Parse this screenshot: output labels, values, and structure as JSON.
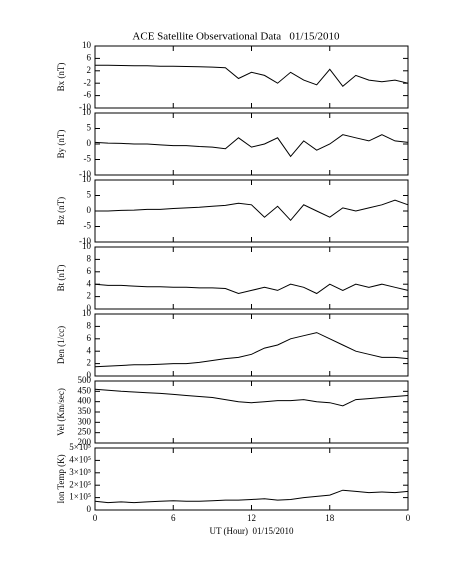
{
  "chart_data": [
    {
      "type": "line",
      "title": "ACE Satellite Observational Data   01/15/2010",
      "y_label": "Bx (nT)",
      "x": [
        0,
        1,
        2,
        3,
        4,
        5,
        6,
        7,
        8,
        9,
        10,
        11,
        12,
        13,
        14,
        15,
        16,
        17,
        18,
        19,
        20,
        21,
        22,
        23,
        24
      ],
      "values": [
        3.8,
        3.8,
        3.7,
        3.6,
        3.6,
        3.5,
        3.5,
        3.4,
        3.3,
        3.2,
        3.0,
        -0.5,
        1.5,
        0.5,
        -2,
        1.5,
        -1,
        -2.5,
        2.5,
        -3,
        0.5,
        -1,
        -1.5,
        -1,
        -2
      ],
      "color": "#000000",
      "xlim": [
        0,
        24
      ],
      "xticks": [
        0,
        6,
        12,
        18,
        {
          "value": 24,
          "label": "0"
        }
      ],
      "ylim": [
        -10,
        10
      ],
      "yticks": [
        -10,
        -6,
        -2,
        2,
        6,
        10
      ]
    },
    {
      "type": "line",
      "y_label": "By (nT)",
      "x": [
        0,
        1,
        2,
        3,
        4,
        5,
        6,
        7,
        8,
        9,
        10,
        11,
        12,
        13,
        14,
        15,
        16,
        17,
        18,
        19,
        20,
        21,
        22,
        23,
        24
      ],
      "values": [
        0.5,
        0.3,
        0.2,
        0,
        0,
        -0.3,
        -0.5,
        -0.5,
        -0.8,
        -1,
        -1.5,
        2,
        -1,
        0,
        2,
        -4,
        1,
        -2,
        0,
        3,
        2,
        1,
        3,
        1,
        0.5
      ],
      "color": "#000000",
      "xlim": [
        0,
        24
      ],
      "xticks": [
        0,
        6,
        12,
        18,
        {
          "value": 24,
          "label": "0"
        }
      ],
      "ylim": [
        -10,
        10
      ],
      "yticks": [
        -10,
        -5,
        0,
        5,
        10
      ]
    },
    {
      "type": "line",
      "y_label": "Bz (nT)",
      "x": [
        0,
        1,
        2,
        3,
        4,
        5,
        6,
        7,
        8,
        9,
        10,
        11,
        12,
        13,
        14,
        15,
        16,
        17,
        18,
        19,
        20,
        21,
        22,
        23,
        24
      ],
      "values": [
        0,
        0,
        0.2,
        0.3,
        0.5,
        0.5,
        0.8,
        1,
        1.2,
        1.5,
        1.8,
        2.5,
        2,
        -2,
        1.5,
        -3,
        2,
        0,
        -2,
        1,
        0,
        1,
        2,
        3.5,
        2
      ],
      "color": "#000000",
      "xlim": [
        0,
        24
      ],
      "xticks": [
        0,
        6,
        12,
        18,
        {
          "value": 24,
          "label": "0"
        }
      ],
      "ylim": [
        -10,
        10
      ],
      "yticks": [
        -10,
        -5,
        0,
        5,
        10
      ]
    },
    {
      "type": "line",
      "y_label": "Bt (nT)",
      "x": [
        0,
        1,
        2,
        3,
        4,
        5,
        6,
        7,
        8,
        9,
        10,
        11,
        12,
        13,
        14,
        15,
        16,
        17,
        18,
        19,
        20,
        21,
        22,
        23,
        24
      ],
      "values": [
        4,
        3.8,
        3.8,
        3.7,
        3.6,
        3.6,
        3.5,
        3.5,
        3.4,
        3.4,
        3.3,
        2.5,
        3,
        3.5,
        3,
        4,
        3.5,
        2.5,
        4,
        3,
        4,
        3.5,
        4,
        3.5,
        3
      ],
      "color": "#000000",
      "xlim": [
        0,
        24
      ],
      "xticks": [
        0,
        6,
        12,
        18,
        {
          "value": 24,
          "label": "0"
        }
      ],
      "ylim": [
        0,
        10
      ],
      "yticks": [
        0,
        2,
        4,
        6,
        8,
        10
      ]
    },
    {
      "type": "line",
      "y_label": "Den (1/cc)",
      "x": [
        0,
        1,
        2,
        3,
        4,
        5,
        6,
        7,
        8,
        9,
        10,
        11,
        12,
        13,
        14,
        15,
        16,
        17,
        18,
        19,
        20,
        21,
        22,
        23,
        24
      ],
      "values": [
        1.5,
        1.6,
        1.7,
        1.8,
        1.8,
        1.9,
        2,
        2,
        2.2,
        2.5,
        2.8,
        3,
        3.5,
        4.5,
        5,
        6,
        6.5,
        7,
        6,
        5,
        4,
        3.5,
        3,
        3,
        2.8
      ],
      "color": "#000000",
      "xlim": [
        0,
        24
      ],
      "xticks": [
        0,
        6,
        12,
        18,
        {
          "value": 24,
          "label": "0"
        }
      ],
      "ylim": [
        0,
        10
      ],
      "yticks": [
        0,
        2,
        4,
        6,
        8,
        10
      ]
    },
    {
      "type": "line",
      "y_label": "Vel (Km/sec)",
      "x": [
        0,
        1,
        2,
        3,
        4,
        5,
        6,
        7,
        8,
        9,
        10,
        11,
        12,
        13,
        14,
        15,
        16,
        17,
        18,
        19,
        20,
        21,
        22,
        23,
        24
      ],
      "values": [
        460,
        455,
        450,
        447,
        443,
        440,
        435,
        430,
        425,
        420,
        410,
        400,
        395,
        400,
        405,
        405,
        410,
        400,
        395,
        380,
        410,
        415,
        420,
        425,
        430
      ],
      "color": "#000000",
      "xlim": [
        0,
        24
      ],
      "xticks": [
        0,
        6,
        12,
        18,
        {
          "value": 24,
          "label": "0"
        }
      ],
      "ylim": [
        200,
        500
      ],
      "yticks": [
        200,
        250,
        300,
        350,
        400,
        450,
        500
      ]
    },
    {
      "type": "line",
      "y_label": "Ion Temp (K)",
      "x_label": "UT (Hour)  01/15/2010",
      "x": [
        0,
        1,
        2,
        3,
        4,
        5,
        6,
        7,
        8,
        9,
        10,
        11,
        12,
        13,
        14,
        15,
        16,
        17,
        18,
        19,
        20,
        21,
        22,
        23,
        24
      ],
      "values": [
        70000,
        60000,
        65000,
        60000,
        65000,
        70000,
        75000,
        70000,
        70000,
        75000,
        80000,
        80000,
        85000,
        90000,
        80000,
        85000,
        100000,
        110000,
        120000,
        160000,
        150000,
        140000,
        145000,
        140000,
        150000
      ],
      "color": "#000000",
      "xlim": [
        0,
        24
      ],
      "xticks": [
        0,
        6,
        12,
        18,
        {
          "value": 24,
          "label": "0"
        }
      ],
      "ylim": [
        0,
        500000
      ],
      "yticks": [
        0,
        {
          "value": 100000,
          "label": "1×10⁵"
        },
        {
          "value": 200000,
          "label": "2×10⁵"
        },
        {
          "value": 300000,
          "label": "3×10⁵"
        },
        {
          "value": 400000,
          "label": "4×10⁵"
        },
        {
          "value": 500000,
          "label": "5×10⁵"
        }
      ]
    }
  ]
}
